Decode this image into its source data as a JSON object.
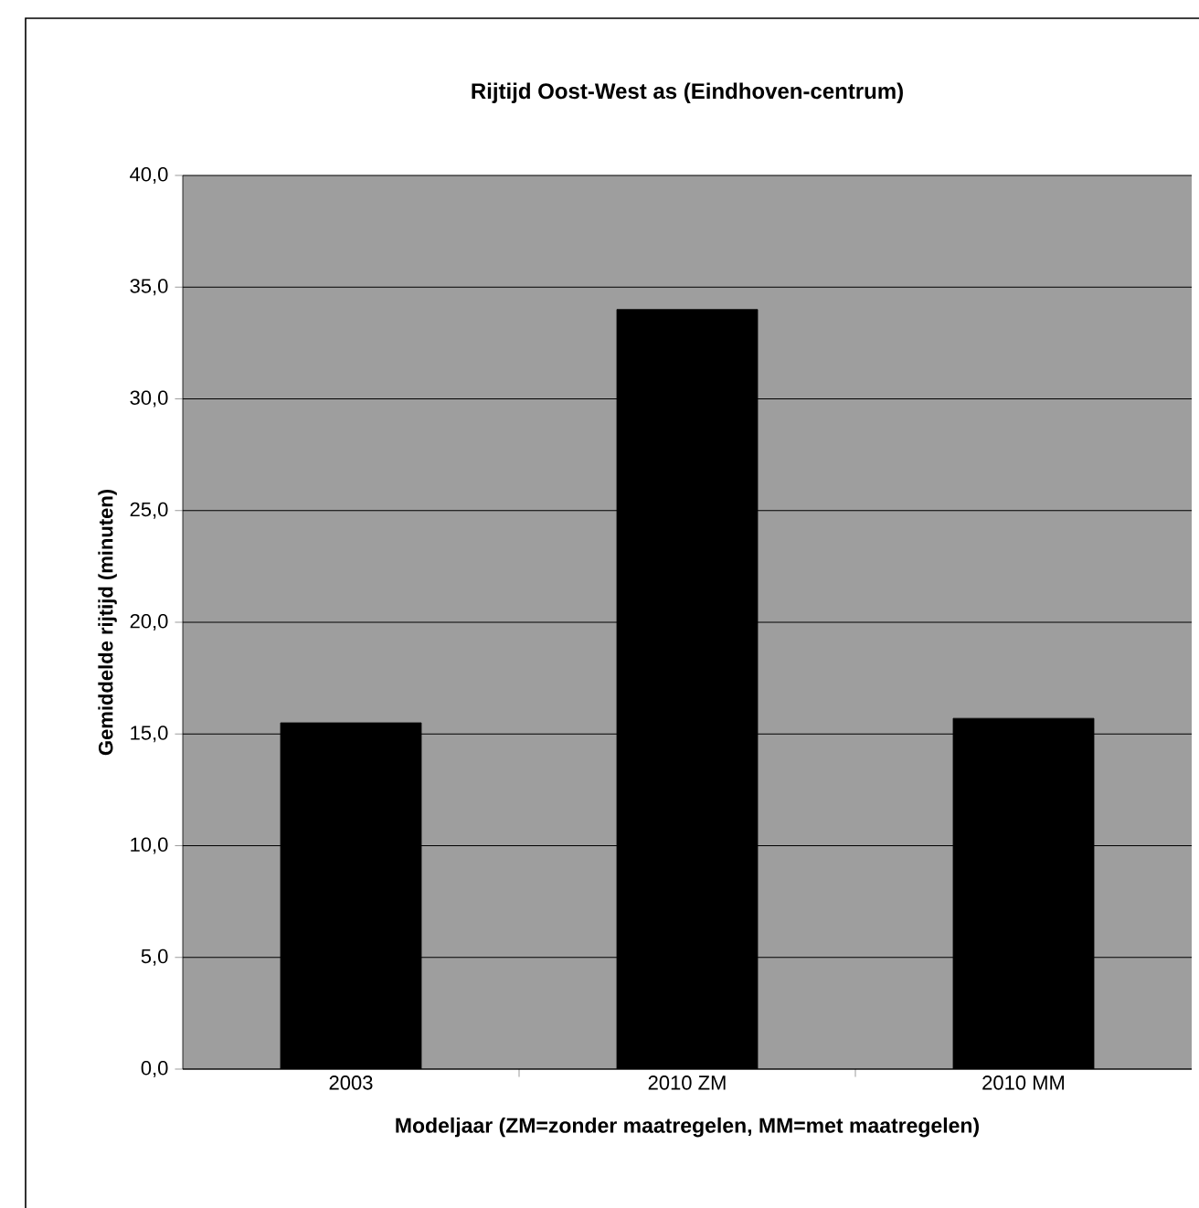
{
  "chart_data": {
    "type": "bar",
    "title": "Rijtijd Oost-West as (Eindhoven-centrum)",
    "xlabel": "Modeljaar (ZM=zonder maatregelen, MM=met maatregelen)",
    "ylabel": "Gemiddelde rijtijd  (minuten)",
    "categories": [
      "2003",
      "2010 ZM",
      "2010 MM"
    ],
    "values": [
      15.5,
      34.0,
      15.7
    ],
    "color": "#000000",
    "ylim": [
      0,
      40
    ],
    "yticks": [
      {
        "value": 0,
        "label": "0,0"
      },
      {
        "value": 5,
        "label": "5,0"
      },
      {
        "value": 10,
        "label": "10,0"
      },
      {
        "value": 15,
        "label": "15,0"
      },
      {
        "value": 20,
        "label": "20,0"
      },
      {
        "value": 25,
        "label": "25,0"
      },
      {
        "value": 30,
        "label": "30,0"
      },
      {
        "value": 35,
        "label": "35,0"
      },
      {
        "value": 40,
        "label": "40,0"
      }
    ],
    "grid": "y"
  }
}
